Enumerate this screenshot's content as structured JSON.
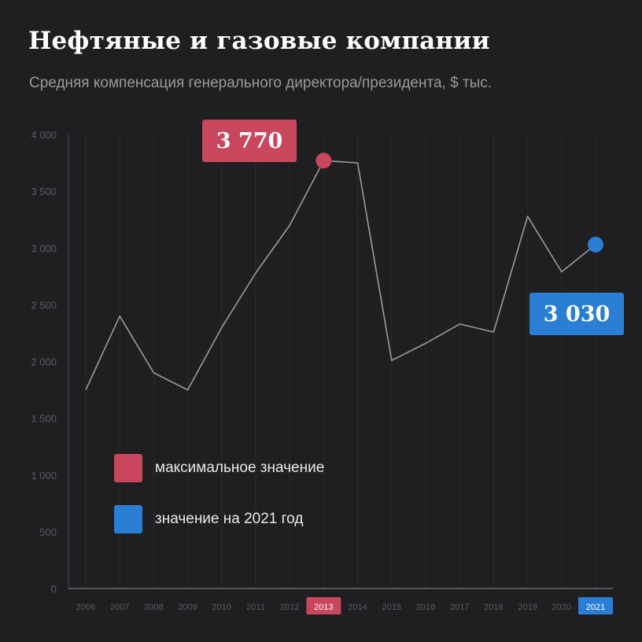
{
  "title": "Нефтяные и газовые компании",
  "subtitle": "Средняя компенсация генерального директора/президента, $ тыс.",
  "colors": {
    "background": "#1f1f21",
    "line": "#9b9b9d",
    "max": "#c9475d",
    "current": "#2a7fd4"
  },
  "legend": {
    "max_label": "максимальное значение",
    "current_label": "значение на 2021 год"
  },
  "callouts": {
    "max_value": "3 770",
    "current_value": "3 030"
  },
  "chart_data": {
    "type": "line",
    "title": "Нефтяные и газовые компании",
    "subtitle": "Средняя компенсация генерального директора/президента, $ тыс.",
    "x": [
      "2006",
      "2007",
      "2008",
      "2009",
      "2010",
      "2011",
      "2012",
      "2013",
      "2014",
      "2015",
      "2016",
      "2017",
      "2018",
      "2019",
      "2020",
      "2021"
    ],
    "series": [
      {
        "values": [
          1750,
          2400,
          1900,
          1750,
          2300,
          2780,
          3200,
          3770,
          3750,
          2010,
          2160,
          2330,
          2260,
          3280,
          2790,
          3030
        ]
      }
    ],
    "y_ticks": [
      "0",
      "500",
      "1 000",
      "1 500",
      "2 000",
      "2 500",
      "3 000",
      "3 500",
      "4 000"
    ],
    "ylim": [
      0,
      4000
    ],
    "grid": "vertical",
    "highlight": {
      "max_index": 7,
      "current_index": 15
    },
    "legend_position": "lower-left"
  }
}
